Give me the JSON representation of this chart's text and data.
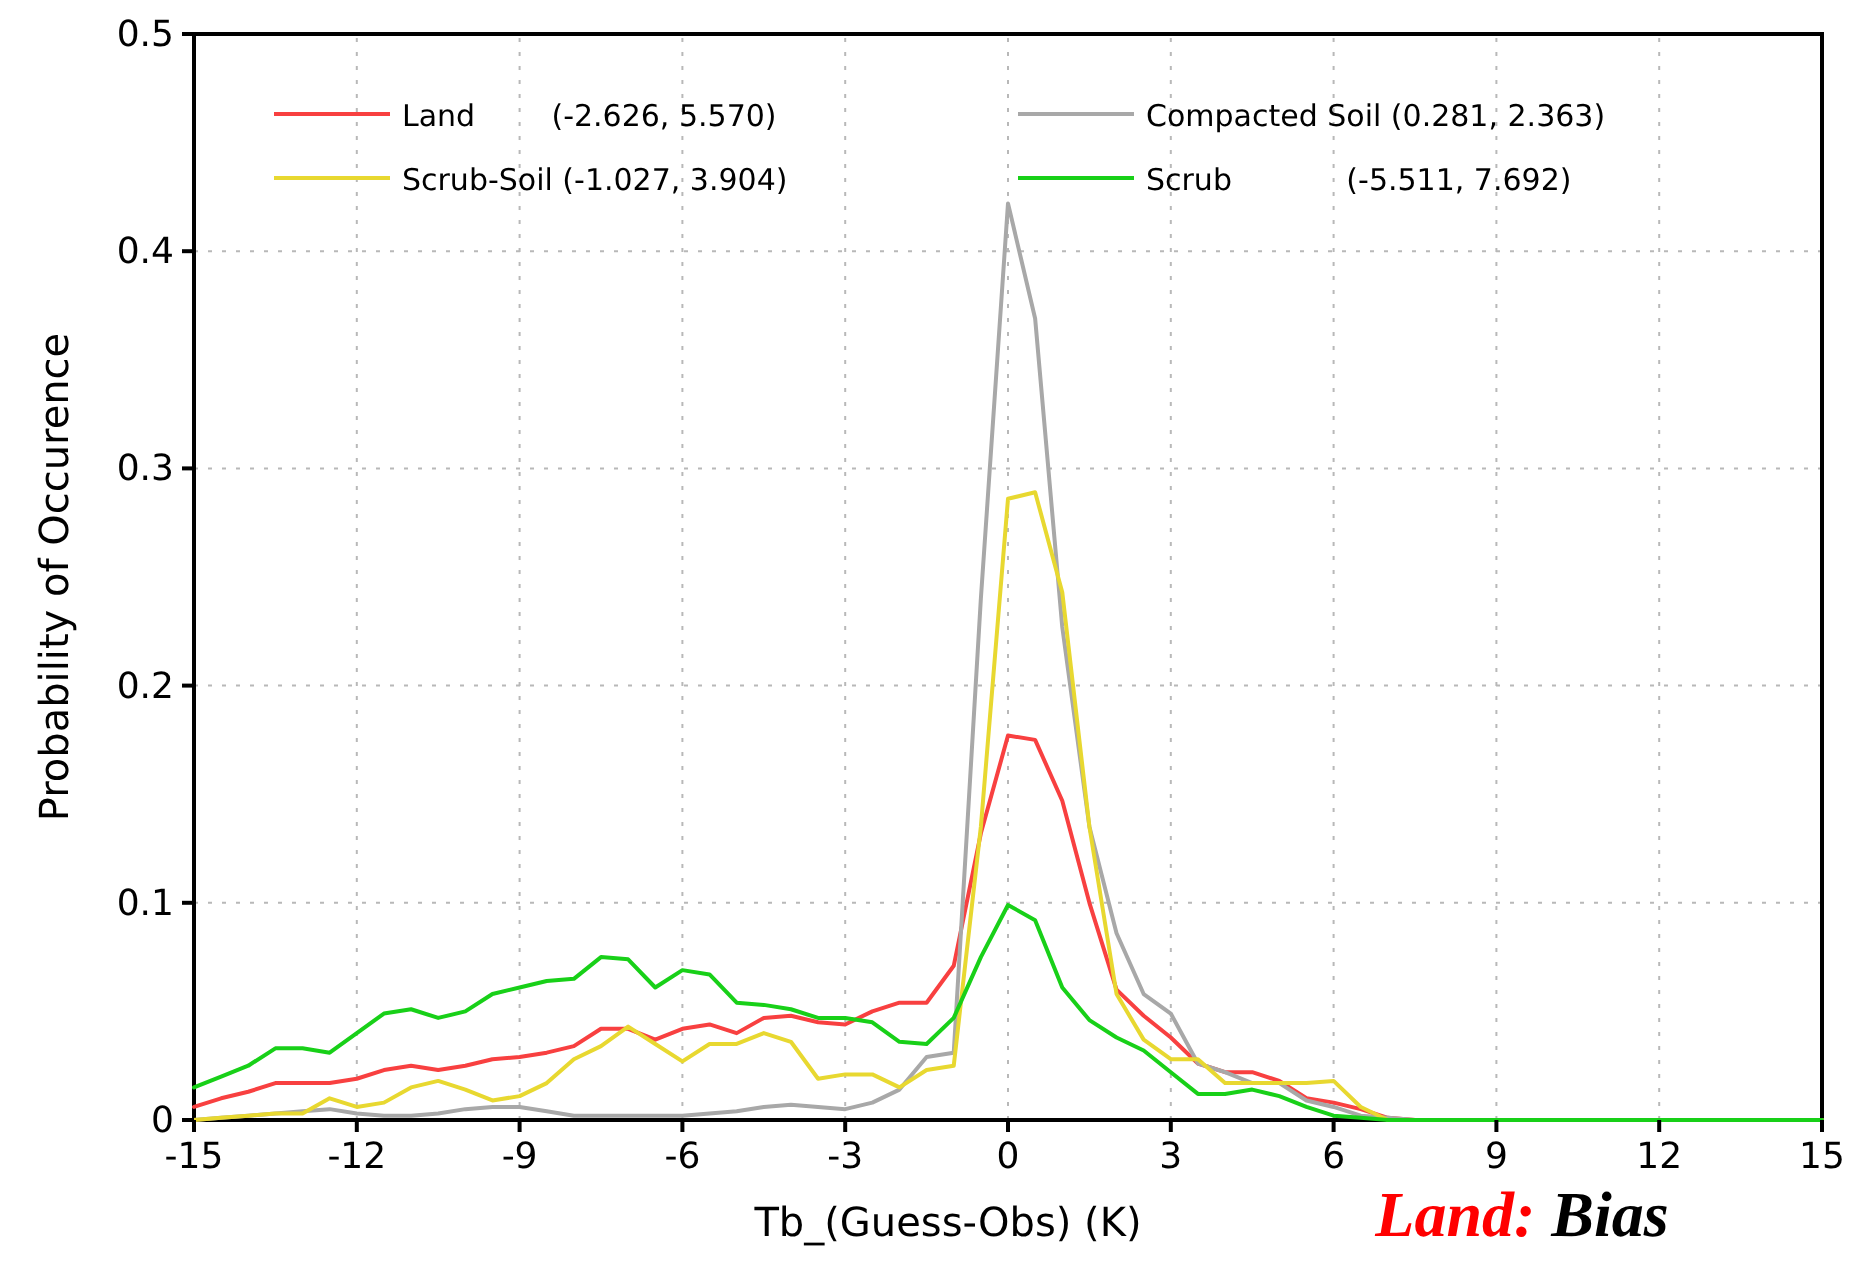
{
  "chart_data": {
    "type": "line",
    "xlabel": "Tb_(Guess-Obs) (K)",
    "ylabel": "Probability of Occurence",
    "x": [
      -15,
      -14.5,
      -14,
      -13.5,
      -13,
      -12.5,
      -12,
      -11.5,
      -11,
      -10.5,
      -10,
      -9.5,
      -9,
      -8.5,
      -8,
      -7.5,
      -7,
      -6.5,
      -6,
      -5.5,
      -5,
      -4.5,
      -4,
      -3.5,
      -3,
      -2.5,
      -2,
      -1.5,
      -1,
      -0.5,
      0,
      0.5,
      1,
      1.5,
      2,
      2.5,
      3,
      3.5,
      4,
      4.5,
      5,
      5.5,
      6,
      6.5,
      7,
      7.5,
      15
    ],
    "series": [
      {
        "name": "Land        (-2.626, 5.570)",
        "color": "#f84040",
        "values": [
          0.006,
          0.01,
          0.013,
          0.017,
          0.017,
          0.017,
          0.019,
          0.023,
          0.025,
          0.023,
          0.025,
          0.028,
          0.029,
          0.031,
          0.034,
          0.042,
          0.042,
          0.037,
          0.042,
          0.044,
          0.04,
          0.047,
          0.048,
          0.045,
          0.044,
          0.05,
          0.054,
          0.054,
          0.071,
          0.132,
          0.177,
          0.175,
          0.147,
          0.1,
          0.06,
          0.048,
          0.038,
          0.026,
          0.022,
          0.022,
          0.018,
          0.01,
          0.008,
          0.005,
          0.001,
          0,
          0
        ]
      },
      {
        "name": "Compacted Soil (0.281, 2.363)",
        "color": "#a8a8a8",
        "values": [
          0,
          0.001,
          0.002,
          0.003,
          0.004,
          0.005,
          0.003,
          0.002,
          0.002,
          0.003,
          0.005,
          0.006,
          0.006,
          0.004,
          0.002,
          0.002,
          0.002,
          0.002,
          0.002,
          0.003,
          0.004,
          0.006,
          0.007,
          0.006,
          0.005,
          0.008,
          0.014,
          0.029,
          0.031,
          0.24,
          0.422,
          0.369,
          0.227,
          0.135,
          0.086,
          0.058,
          0.049,
          0.026,
          0.022,
          0.017,
          0.017,
          0.009,
          0.006,
          0.002,
          0.001,
          0,
          0
        ]
      },
      {
        "name": "Scrub-Soil (-1.027, 3.904)",
        "color": "#e8d830",
        "values": [
          0,
          0.001,
          0.002,
          0.003,
          0.003,
          0.01,
          0.006,
          0.008,
          0.015,
          0.018,
          0.014,
          0.009,
          0.011,
          0.017,
          0.028,
          0.034,
          0.043,
          0.035,
          0.027,
          0.035,
          0.035,
          0.04,
          0.036,
          0.019,
          0.021,
          0.021,
          0.015,
          0.023,
          0.025,
          0.135,
          0.286,
          0.289,
          0.243,
          0.135,
          0.058,
          0.037,
          0.028,
          0.028,
          0.017,
          0.017,
          0.017,
          0.017,
          0.018,
          0.006,
          0,
          0,
          0
        ]
      },
      {
        "name": "Scrub            (-5.511, 7.692)",
        "color": "#18d018",
        "values": [
          0.015,
          0.02,
          0.025,
          0.033,
          0.033,
          0.031,
          0.04,
          0.049,
          0.051,
          0.047,
          0.05,
          0.058,
          0.061,
          0.064,
          0.065,
          0.075,
          0.074,
          0.061,
          0.069,
          0.067,
          0.054,
          0.053,
          0.051,
          0.047,
          0.047,
          0.045,
          0.036,
          0.035,
          0.047,
          0.075,
          0.099,
          0.092,
          0.061,
          0.046,
          0.038,
          0.032,
          0.022,
          0.012,
          0.012,
          0.014,
          0.011,
          0.006,
          0.002,
          0.001,
          0,
          0,
          0
        ]
      }
    ],
    "xlim": [
      -15,
      15
    ],
    "xticks": [
      -15,
      -12,
      -9,
      -6,
      -3,
      0,
      3,
      6,
      9,
      12,
      15
    ],
    "ylim": [
      0,
      0.5
    ],
    "yticks": [
      0,
      0.1,
      0.2,
      0.3,
      0.4,
      0.5
    ],
    "grid": true,
    "legend": "top",
    "marker": "none",
    "line_style": "solid",
    "annotations": [
      "Land: Bias"
    ]
  }
}
